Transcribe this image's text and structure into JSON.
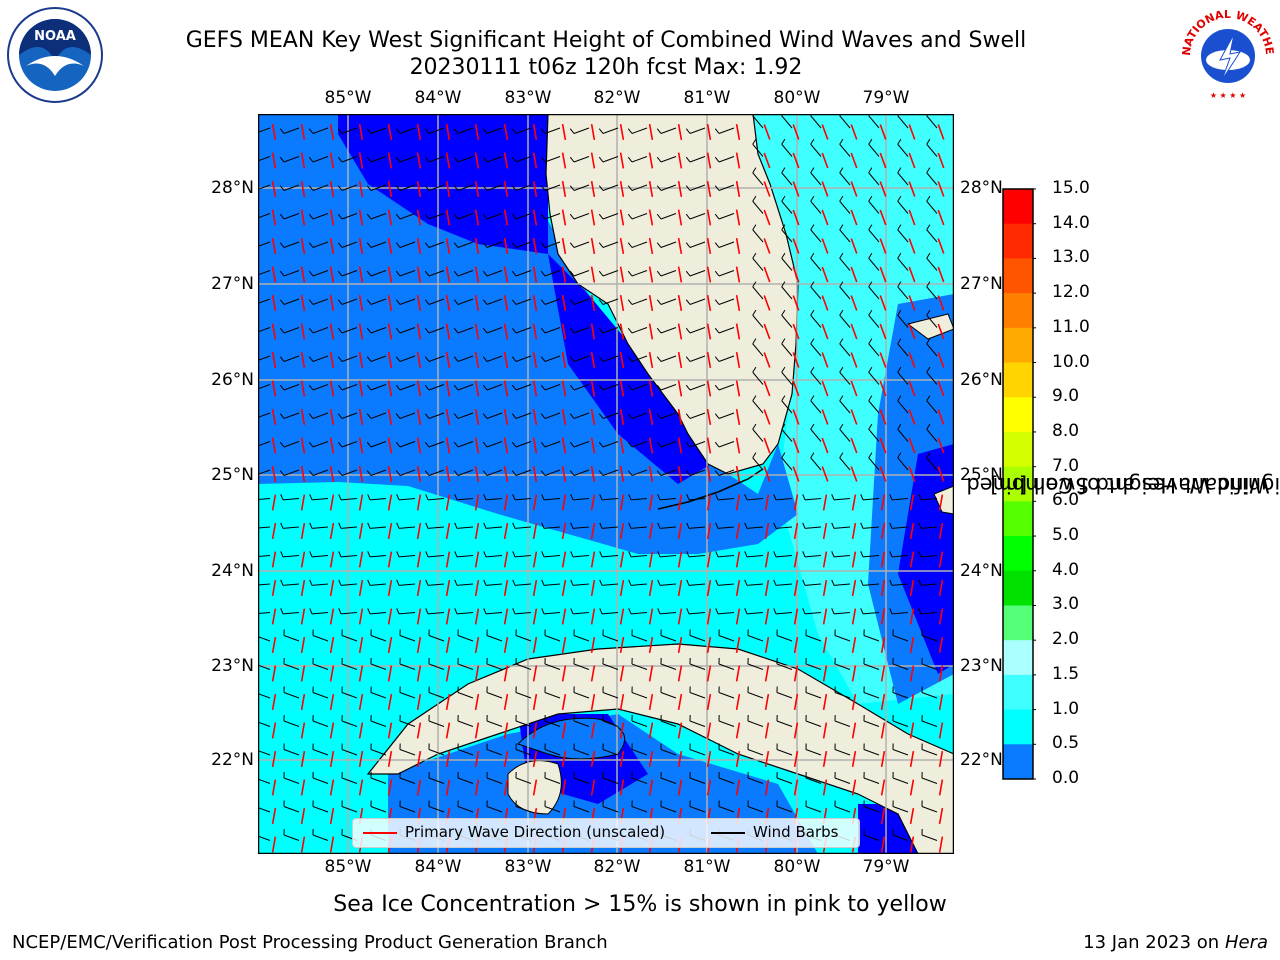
{
  "title": {
    "line1": "GEFS MEAN Key West Significant Height of Combined Wind Waves and Swell",
    "line2": "20230111 t06z 120h fcst   Max: 1.92"
  },
  "map": {
    "lon_labels": [
      "85°W",
      "84°W",
      "83°W",
      "82°W",
      "81°W",
      "80°W",
      "79°W"
    ],
    "lat_labels": [
      "28°N",
      "27°N",
      "26°N",
      "25°N",
      "24°N",
      "23°N",
      "22°N"
    ],
    "legend": {
      "wave_direction": "Primary Wave Direction (unscaled)",
      "wind_barbs": "Wind Barbs"
    },
    "colors": {
      "land": "#efeddb",
      "band_0_0_5": "#0000ff",
      "band_0_5_1_0": "#0a7aff",
      "band_1_0_1_5": "#00ffff",
      "band_1_5_2_0": "#40ffff",
      "grid": "#b0b0b0",
      "arrow": "#ff0000",
      "barb": "#000000"
    }
  },
  "colorbar": {
    "title_line1": "Significant Height of Combined",
    "title_line2": "Wind Waves and Swell [m]",
    "ticks": [
      "15.0",
      "14.0",
      "13.0",
      "12.0",
      "11.0",
      "10.0",
      "9.0",
      "8.0",
      "7.0",
      "6.0",
      "5.0",
      "4.0",
      "3.0",
      "2.0",
      "1.5",
      "1.0",
      "0.5",
      "0.0"
    ],
    "colors": [
      "#ff0000",
      "#ff2a00",
      "#ff5500",
      "#ff8000",
      "#ffaa00",
      "#ffd400",
      "#ffff00",
      "#d4ff00",
      "#aaff00",
      "#55ff00",
      "#00ff00",
      "#00e100",
      "#55ff77",
      "#aaffff",
      "#40ffff",
      "#00ffff",
      "#0a7aff",
      "#0000ff"
    ]
  },
  "ice_note": "Sea Ice Concentration > 15% is shown in pink to yellow",
  "footer": {
    "left": "NCEP/EMC/Verification Post Processing Product Generation Branch",
    "right_date": "13 Jan 2023 on ",
    "right_host": "Hera"
  },
  "logos": {
    "noaa": "NOAA",
    "nws": "NATIONAL WEATHER SERVICE"
  }
}
